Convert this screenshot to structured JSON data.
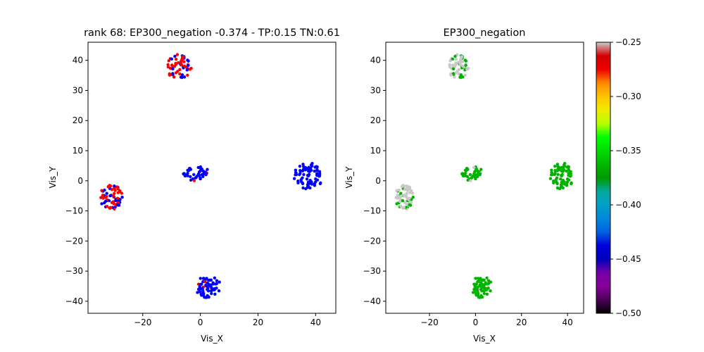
{
  "chart_data": [
    {
      "type": "scatter",
      "title": "rank 68: EP300_negation -0.374 - TP:0.15 TN:0.61",
      "xlabel": "Vis_X",
      "ylabel": "Vis_Y",
      "xlim": [
        -39,
        47
      ],
      "ylim": [
        -44,
        46
      ],
      "xticks": [
        -20,
        0,
        20,
        40
      ],
      "yticks": [
        -40,
        -30,
        -20,
        -10,
        0,
        10,
        20,
        30,
        40
      ],
      "grid": false,
      "point_colors": {
        "positive": "#ff0000",
        "negative": "#0000ff"
      },
      "clusters": [
        {
          "center": [
            -7.5,
            38
          ],
          "radius": [
            4.5,
            4.2
          ],
          "n": 60,
          "positive_fraction": 0.55
        },
        {
          "center": [
            -31,
            -5.5
          ],
          "radius": [
            4.0,
            4.2
          ],
          "n": 70,
          "positive_fraction": 0.6
        },
        {
          "center": [
            -1.5,
            2.5
          ],
          "radius": [
            4.5,
            2.6
          ],
          "n": 45,
          "positive_fraction": 0.08
        },
        {
          "center": [
            37.5,
            1.5
          ],
          "radius": [
            5.0,
            4.5
          ],
          "n": 75,
          "positive_fraction": 0.0
        },
        {
          "center": [
            2.5,
            -35
          ],
          "radius": [
            4.5,
            3.8
          ],
          "n": 65,
          "positive_fraction": 0.06
        }
      ]
    },
    {
      "type": "scatter",
      "title": "EP300_negation",
      "xlabel": "Vis_X",
      "ylabel": "Vis_Y",
      "xlim": [
        -39,
        47
      ],
      "ylim": [
        -44,
        46
      ],
      "xticks": [
        -20,
        0,
        20,
        40
      ],
      "yticks": [
        -40,
        -30,
        -20,
        -10,
        0,
        10,
        20,
        30,
        40
      ],
      "grid": false,
      "colormap": "nipy_spectral",
      "colorbar": {
        "vmin": -0.5,
        "vmax": -0.25,
        "ticks": [
          "-0.50",
          "-0.45",
          "-0.40",
          "-0.35",
          "-0.30",
          "-0.25"
        ]
      },
      "point_colors": {
        "main": "#00b300",
        "highlight": "#c8c8c8"
      },
      "clusters": [
        {
          "center": [
            -7.5,
            38
          ],
          "radius": [
            4.5,
            4.2
          ],
          "n": 60,
          "light_fraction": 0.55
        },
        {
          "center": [
            -31,
            -5.5
          ],
          "radius": [
            4.0,
            4.2
          ],
          "n": 70,
          "light_fraction": 0.7
        },
        {
          "center": [
            -1.5,
            2.5
          ],
          "radius": [
            4.5,
            2.6
          ],
          "n": 45,
          "light_fraction": 0.12
        },
        {
          "center": [
            37.5,
            1.5
          ],
          "radius": [
            5.0,
            4.5
          ],
          "n": 75,
          "light_fraction": 0.0
        },
        {
          "center": [
            2.5,
            -35
          ],
          "radius": [
            4.5,
            3.8
          ],
          "n": 65,
          "light_fraction": 0.0
        }
      ]
    }
  ]
}
